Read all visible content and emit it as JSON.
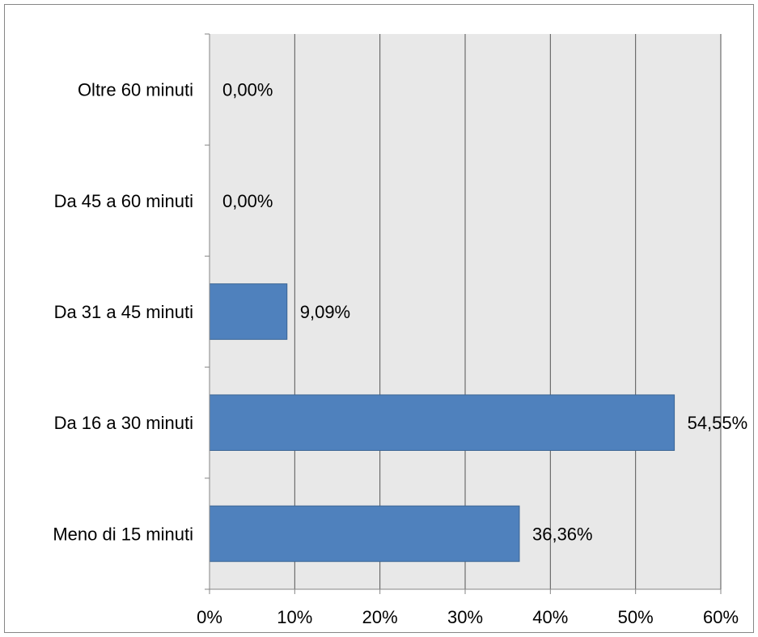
{
  "chart_data": {
    "type": "bar",
    "orientation": "horizontal",
    "title": "",
    "xlabel": "",
    "ylabel": "",
    "categories": [
      "Oltre 60 minuti",
      "Da 45 a 60 minuti",
      "Da 31 a 45 minuti",
      "Da 16 a 30 minuti",
      "Meno di 15 minuti"
    ],
    "values": [
      0.0,
      0.0,
      9.09,
      54.55,
      36.36
    ],
    "data_labels": [
      "0,00%",
      "0,00%",
      "9,09%",
      "54,55%",
      "36,36%"
    ],
    "xlim": [
      0,
      60
    ],
    "x_ticks": [
      0,
      10,
      20,
      30,
      40,
      50,
      60
    ],
    "x_tick_labels": [
      "0%",
      "10%",
      "20%",
      "30%",
      "40%",
      "50%",
      "60%"
    ],
    "grid": "vertical",
    "legend": "none",
    "colors": {
      "bar": "#4f81bd",
      "bar_border": "#3a6494",
      "plot_background": "#e8e8e8",
      "gridline": "#555555",
      "axis": "#868686",
      "frame": "#868686"
    }
  }
}
